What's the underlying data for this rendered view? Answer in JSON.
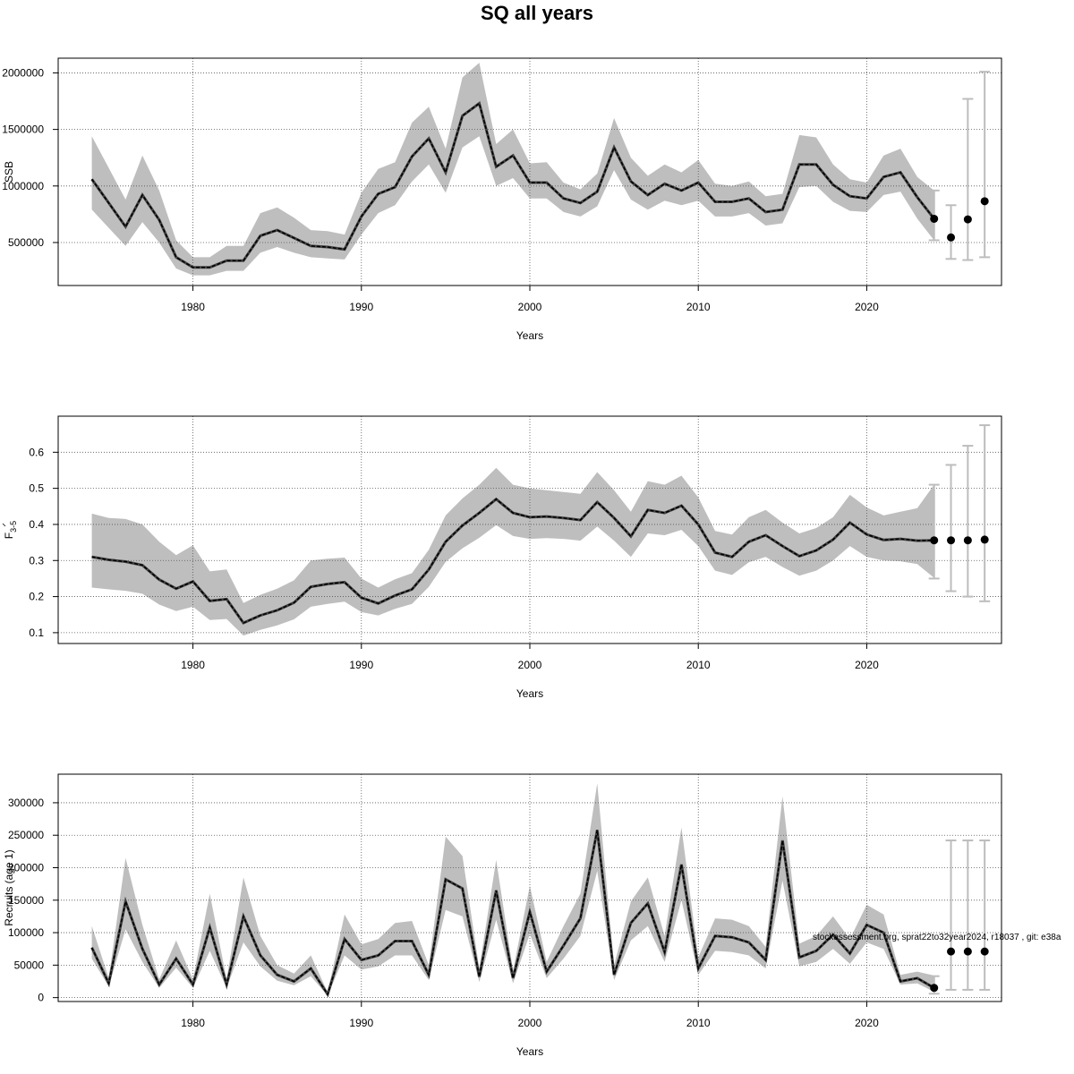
{
  "title": "SQ all years",
  "footnote": "stockassessment.org, sprat22to32year2024, r18037 , git: e38a",
  "colors": {
    "band": "#bebebe",
    "line": "#000000",
    "whisker": "#bdbdbd",
    "grid": "#555555"
  },
  "chart_data": [
    {
      "type": "line",
      "xlabel": "Years",
      "ylabel": "SSB",
      "xlim": [
        1972,
        2028
      ],
      "ylim": [
        120000,
        2130000
      ],
      "xticks": [
        1980,
        1990,
        2000,
        2010,
        2020
      ],
      "yticks": [
        500000,
        1000000,
        1500000,
        2000000
      ],
      "ytick_labels": [
        "500000",
        "1000000",
        "1500000",
        "2000000"
      ],
      "x": [
        1974,
        1975,
        1976,
        1977,
        1978,
        1979,
        1980,
        1981,
        1982,
        1983,
        1984,
        1985,
        1986,
        1987,
        1988,
        1989,
        1990,
        1991,
        1992,
        1993,
        1994,
        1995,
        1996,
        1997,
        1998,
        1999,
        2000,
        2001,
        2002,
        2003,
        2004,
        2005,
        2006,
        2007,
        2008,
        2009,
        2010,
        2011,
        2012,
        2013,
        2014,
        2015,
        2016,
        2017,
        2018,
        2019,
        2020,
        2021,
        2022,
        2023,
        2024
      ],
      "estimate": [
        1060000,
        850000,
        640000,
        920000,
        700000,
        370000,
        280000,
        280000,
        340000,
        340000,
        560000,
        610000,
        540000,
        470000,
        460000,
        440000,
        730000,
        930000,
        990000,
        1260000,
        1420000,
        1120000,
        1620000,
        1730000,
        1170000,
        1270000,
        1030000,
        1030000,
        890000,
        850000,
        950000,
        1340000,
        1040000,
        920000,
        1020000,
        960000,
        1030000,
        860000,
        860000,
        890000,
        770000,
        790000,
        1190000,
        1190000,
        1010000,
        910000,
        890000,
        1080000,
        1120000,
        900000,
        710000
      ],
      "lower": [
        790000,
        630000,
        470000,
        680000,
        500000,
        270000,
        210000,
        210000,
        250000,
        250000,
        410000,
        460000,
        410000,
        370000,
        360000,
        350000,
        570000,
        760000,
        830000,
        1040000,
        1190000,
        940000,
        1340000,
        1440000,
        1000000,
        1070000,
        890000,
        890000,
        770000,
        730000,
        820000,
        1140000,
        880000,
        790000,
        870000,
        830000,
        870000,
        730000,
        730000,
        760000,
        650000,
        670000,
        990000,
        1000000,
        860000,
        780000,
        770000,
        920000,
        950000,
        710000,
        520000
      ],
      "upper": [
        1440000,
        1160000,
        880000,
        1270000,
        960000,
        520000,
        370000,
        370000,
        470000,
        470000,
        760000,
        810000,
        720000,
        610000,
        600000,
        570000,
        940000,
        1150000,
        1210000,
        1560000,
        1700000,
        1330000,
        1960000,
        2090000,
        1370000,
        1500000,
        1200000,
        1210000,
        1030000,
        970000,
        1110000,
        1600000,
        1250000,
        1090000,
        1190000,
        1120000,
        1230000,
        1020000,
        1000000,
        1040000,
        910000,
        930000,
        1450000,
        1430000,
        1190000,
        1060000,
        1030000,
        1270000,
        1330000,
        1080000,
        960000
      ],
      "forecast": [
        {
          "x": 2024,
          "y": 710000,
          "lo": 520000,
          "hi": 960000
        },
        {
          "x": 2025,
          "y": 545000,
          "lo": 355000,
          "hi": 830000
        },
        {
          "x": 2026,
          "y": 705000,
          "lo": 345000,
          "hi": 1770000
        },
        {
          "x": 2027,
          "y": 865000,
          "lo": 370000,
          "hi": 2010000
        }
      ]
    },
    {
      "type": "line",
      "xlabel": "Years",
      "ylabel": "F3-5",
      "ylabel_main": "F",
      "ylabel_sub": "3-5",
      "xlim": [
        1972,
        2028
      ],
      "ylim": [
        0.07,
        0.7
      ],
      "xticks": [
        1980,
        1990,
        2000,
        2010,
        2020
      ],
      "yticks": [
        0.1,
        0.2,
        0.3,
        0.4,
        0.5,
        0.6
      ],
      "ytick_labels": [
        "0.1",
        "0.2",
        "0.3",
        "0.4",
        "0.5",
        "0.6"
      ],
      "x": [
        1974,
        1975,
        1976,
        1977,
        1978,
        1979,
        1980,
        1981,
        1982,
        1983,
        1984,
        1985,
        1986,
        1987,
        1988,
        1989,
        1990,
        1991,
        1992,
        1993,
        1994,
        1995,
        1996,
        1997,
        1998,
        1999,
        2000,
        2001,
        2002,
        2003,
        2004,
        2005,
        2006,
        2007,
        2008,
        2009,
        2010,
        2011,
        2012,
        2013,
        2014,
        2015,
        2016,
        2017,
        2018,
        2019,
        2020,
        2021,
        2022,
        2023,
        2024
      ],
      "estimate": [
        0.31,
        0.302,
        0.297,
        0.287,
        0.247,
        0.222,
        0.242,
        0.188,
        0.193,
        0.127,
        0.148,
        0.162,
        0.183,
        0.227,
        0.235,
        0.24,
        0.197,
        0.181,
        0.203,
        0.22,
        0.275,
        0.352,
        0.397,
        0.432,
        0.47,
        0.432,
        0.42,
        0.422,
        0.418,
        0.412,
        0.462,
        0.418,
        0.367,
        0.44,
        0.432,
        0.452,
        0.4,
        0.322,
        0.31,
        0.352,
        0.37,
        0.34,
        0.312,
        0.328,
        0.358,
        0.405,
        0.372,
        0.357,
        0.36,
        0.355,
        0.356
      ],
      "lower": [
        0.225,
        0.22,
        0.216,
        0.208,
        0.178,
        0.16,
        0.172,
        0.135,
        0.138,
        0.092,
        0.108,
        0.12,
        0.137,
        0.172,
        0.18,
        0.186,
        0.157,
        0.148,
        0.166,
        0.18,
        0.227,
        0.296,
        0.334,
        0.363,
        0.398,
        0.368,
        0.36,
        0.362,
        0.36,
        0.355,
        0.394,
        0.355,
        0.31,
        0.375,
        0.37,
        0.385,
        0.34,
        0.272,
        0.26,
        0.295,
        0.31,
        0.282,
        0.258,
        0.272,
        0.3,
        0.34,
        0.31,
        0.3,
        0.298,
        0.29,
        0.252
      ],
      "upper": [
        0.43,
        0.418,
        0.415,
        0.4,
        0.352,
        0.315,
        0.342,
        0.27,
        0.275,
        0.182,
        0.205,
        0.222,
        0.245,
        0.3,
        0.305,
        0.308,
        0.25,
        0.225,
        0.248,
        0.265,
        0.33,
        0.425,
        0.472,
        0.51,
        0.557,
        0.51,
        0.5,
        0.495,
        0.49,
        0.485,
        0.545,
        0.495,
        0.435,
        0.52,
        0.51,
        0.535,
        0.475,
        0.382,
        0.372,
        0.42,
        0.44,
        0.405,
        0.375,
        0.39,
        0.42,
        0.482,
        0.447,
        0.425,
        0.435,
        0.445,
        0.51
      ],
      "forecast": [
        {
          "x": 2024,
          "y": 0.356,
          "lo": 0.25,
          "hi": 0.51
        },
        {
          "x": 2025,
          "y": 0.356,
          "lo": 0.215,
          "hi": 0.565
        },
        {
          "x": 2026,
          "y": 0.356,
          "lo": 0.2,
          "hi": 0.618
        },
        {
          "x": 2027,
          "y": 0.358,
          "lo": 0.187,
          "hi": 0.675
        }
      ]
    },
    {
      "type": "line",
      "xlabel": "Years",
      "ylabel": "Recruits (age 1)",
      "xlim": [
        1972,
        2028
      ],
      "ylim": [
        -6000,
        344000
      ],
      "xticks": [
        1980,
        1990,
        2000,
        2010,
        2020
      ],
      "yticks": [
        0,
        50000,
        100000,
        150000,
        200000,
        250000,
        300000
      ],
      "ytick_labels": [
        "0",
        "50000",
        "100000",
        "150000",
        "200000",
        "250000",
        "300000"
      ],
      "x": [
        1974,
        1975,
        1976,
        1977,
        1978,
        1979,
        1980,
        1981,
        1982,
        1983,
        1984,
        1985,
        1986,
        1987,
        1988,
        1989,
        1990,
        1991,
        1992,
        1993,
        1994,
        1995,
        1996,
        1997,
        1998,
        1999,
        2000,
        2001,
        2002,
        2003,
        2004,
        2005,
        2006,
        2007,
        2008,
        2009,
        2010,
        2011,
        2012,
        2013,
        2014,
        2015,
        2016,
        2017,
        2018,
        2019,
        2020,
        2021,
        2022,
        2023,
        2024
      ],
      "estimate": [
        77000,
        22000,
        148000,
        75000,
        20000,
        60000,
        20000,
        108000,
        20000,
        125000,
        65000,
        35000,
        25000,
        45000,
        5000,
        90000,
        58000,
        65000,
        87000,
        87000,
        35000,
        182000,
        168000,
        32000,
        165000,
        30000,
        132000,
        40000,
        80000,
        122000,
        258000,
        35000,
        115000,
        145000,
        70000,
        205000,
        45000,
        95000,
        93000,
        85000,
        58000,
        242000,
        62000,
        72000,
        97000,
        68000,
        112000,
        100000,
        25000,
        30000,
        15000
      ],
      "lower": [
        60000,
        17000,
        105000,
        55000,
        15000,
        46000,
        15000,
        72000,
        15000,
        85000,
        48000,
        26000,
        19000,
        33000,
        3000,
        65000,
        43000,
        48000,
        65000,
        65000,
        27000,
        135000,
        125000,
        24000,
        120000,
        22000,
        98000,
        30000,
        60000,
        95000,
        195000,
        27000,
        88000,
        110000,
        55000,
        150000,
        35000,
        72000,
        70000,
        65000,
        45000,
        180000,
        48000,
        55000,
        75000,
        52000,
        85000,
        75000,
        20000,
        22000,
        9000
      ],
      "upper": [
        110000,
        30000,
        215000,
        112000,
        28000,
        88000,
        28000,
        160000,
        28000,
        185000,
        95000,
        50000,
        37000,
        65000,
        8000,
        128000,
        82000,
        90000,
        115000,
        118000,
        50000,
        248000,
        218000,
        45000,
        212000,
        42000,
        172000,
        55000,
        110000,
        160000,
        330000,
        50000,
        148000,
        185000,
        95000,
        262000,
        62000,
        122000,
        120000,
        110000,
        78000,
        310000,
        83000,
        95000,
        125000,
        90000,
        143000,
        128000,
        35000,
        40000,
        34000
      ],
      "forecast": [
        {
          "x": 2024,
          "y": 15000,
          "lo": 6000,
          "hi": 33000
        },
        {
          "x": 2025,
          "y": 71000,
          "lo": 12000,
          "hi": 242000
        },
        {
          "x": 2026,
          "y": 71000,
          "lo": 12000,
          "hi": 242000
        },
        {
          "x": 2027,
          "y": 71000,
          "lo": 12000,
          "hi": 242000
        }
      ]
    }
  ]
}
